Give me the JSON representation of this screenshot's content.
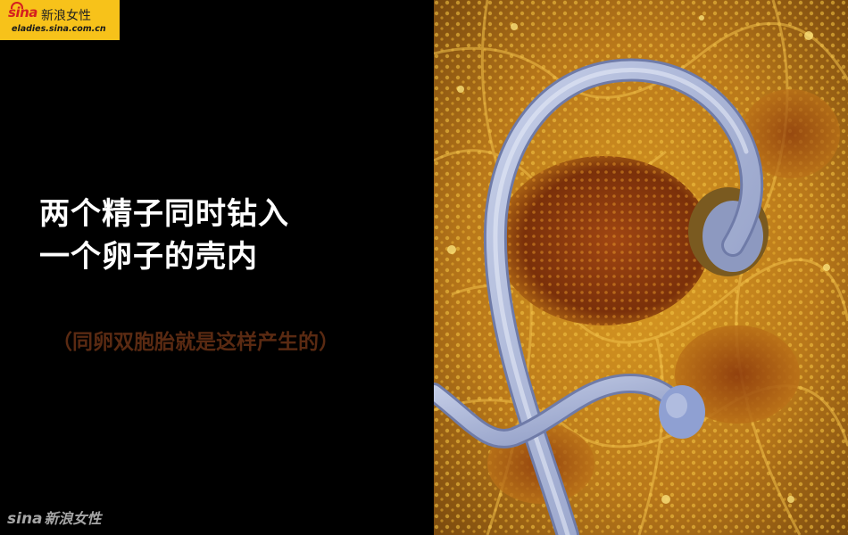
{
  "logo": {
    "brand": "sina",
    "name": "新浪女性",
    "url": "eladies.sina.com.cn"
  },
  "headline": {
    "line1": "两个精子同时钻入",
    "line2": "一个卵子的壳内"
  },
  "subline": "（同卵双胞胎就是这样产生的）",
  "watermark": {
    "brand": "sina",
    "name": "新浪女性"
  },
  "photo": {
    "subject": "sperm-penetrating-egg",
    "colors": {
      "egg_surface": "#c8901a",
      "egg_deep": "#8a3a0c",
      "sperm": "#9aa8d0"
    }
  }
}
